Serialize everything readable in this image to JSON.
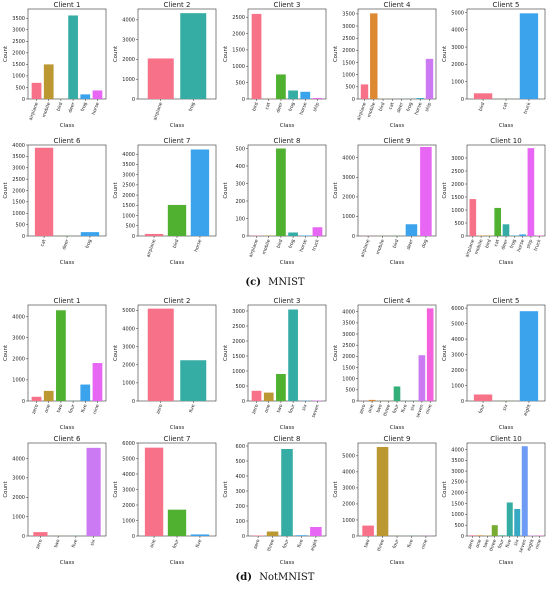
{
  "figure": {
    "caption_mnist": {
      "label": "(c)",
      "text": "MNIST"
    },
    "caption_notmnist": {
      "label": "(d)",
      "text": "NotMNIST"
    },
    "panel_xlabel": "Class",
    "panel_ylabel": "Count"
  },
  "chart_data": [
    {
      "type": "bar",
      "title": "Client 1",
      "xlabel": "Class",
      "ylabel": "Count",
      "ylim": [
        0,
        3900
      ],
      "yticks": [
        0,
        500,
        1000,
        1500,
        2000,
        2500,
        3000,
        3500
      ],
      "categories": [
        "airplane",
        "mobile",
        "bird",
        "deer",
        "frog",
        "horse"
      ],
      "values": [
        700,
        1500,
        5,
        3620,
        200,
        370
      ],
      "colors": [
        "#f77189",
        "#bb9832",
        "#50b131",
        "#36ada4",
        "#3ba3ec",
        "#e866f4"
      ]
    },
    {
      "type": "bar",
      "title": "Client 2",
      "xlabel": "Class",
      "ylabel": "Count",
      "ylim": [
        0,
        4550
      ],
      "yticks": [
        0,
        1000,
        2000,
        3000,
        4000
      ],
      "categories": [
        "airplane",
        "frog"
      ],
      "values": [
        2050,
        4340
      ],
      "colors": [
        "#f77189",
        "#36ada4"
      ]
    },
    {
      "type": "bar",
      "title": "Client 3",
      "xlabel": "Class",
      "ylabel": "Count",
      "ylim": [
        0,
        2750
      ],
      "yticks": [
        0,
        500,
        1000,
        1500,
        2000,
        2500
      ],
      "categories": [
        "bird",
        "cat",
        "deer",
        "frog",
        "horse",
        "ship"
      ],
      "values": [
        2600,
        5,
        750,
        260,
        220,
        30
      ],
      "colors": [
        "#f77189",
        "#bb9832",
        "#50b131",
        "#36ada4",
        "#3ba3ec",
        "#e866f4"
      ]
    },
    {
      "type": "bar",
      "title": "Client 4",
      "xlabel": "Class",
      "ylabel": "Count",
      "ylim": [
        0,
        3700
      ],
      "yticks": [
        0,
        500,
        1000,
        1500,
        2000,
        2500,
        3000,
        3500
      ],
      "categories": [
        "airplane",
        "mobile",
        "bird",
        "cat",
        "deer",
        "frog",
        "horse",
        "ship"
      ],
      "values": [
        600,
        3520,
        5,
        5,
        5,
        5,
        40,
        1650
      ],
      "colors": [
        "#f77189",
        "#dc8932",
        "#ae9d31",
        "#77ab31",
        "#33b07a",
        "#36ada4",
        "#38a9c5",
        "#cc7af4"
      ]
    },
    {
      "type": "bar",
      "title": "Client 5",
      "xlabel": "Class",
      "ylabel": "Count",
      "ylim": [
        0,
        5200
      ],
      "yticks": [
        0,
        1000,
        2000,
        3000,
        4000,
        5000
      ],
      "categories": [
        "bird",
        "cat",
        "truck"
      ],
      "values": [
        330,
        5,
        4950
      ],
      "colors": [
        "#f77189",
        "#50b131",
        "#3ba3ec"
      ]
    },
    {
      "type": "bar",
      "title": "Client 6",
      "xlabel": "Class",
      "ylabel": "Count",
      "ylim": [
        0,
        4000
      ],
      "yticks": [
        0,
        500,
        1000,
        1500,
        2000,
        2500,
        3000,
        3500,
        4000
      ],
      "categories": [
        "cat",
        "deer",
        "frog"
      ],
      "values": [
        3880,
        5,
        170
      ],
      "colors": [
        "#f77189",
        "#50b131",
        "#3ba3ec"
      ]
    },
    {
      "type": "bar",
      "title": "Client 7",
      "xlabel": "Class",
      "ylabel": "Count",
      "ylim": [
        0,
        4450
      ],
      "yticks": [
        0,
        500,
        1000,
        1500,
        2000,
        2500,
        3000,
        3500,
        4000
      ],
      "categories": [
        "airplane",
        "bird",
        "horse"
      ],
      "values": [
        100,
        1520,
        4230
      ],
      "colors": [
        "#f77189",
        "#50b131",
        "#3ba3ec"
      ]
    },
    {
      "type": "bar",
      "title": "Client 8",
      "xlabel": "Class",
      "ylabel": "Count",
      "ylim": [
        0,
        520
      ],
      "yticks": [
        0,
        100,
        200,
        300,
        400,
        500
      ],
      "categories": [
        "airplane",
        "mobile",
        "bird",
        "frog",
        "horse",
        "truck"
      ],
      "values": [
        2,
        2,
        500,
        20,
        3,
        50
      ],
      "colors": [
        "#f77189",
        "#bb9832",
        "#50b131",
        "#36ada4",
        "#3ba3ec",
        "#e866f4"
      ]
    },
    {
      "type": "bar",
      "title": "Client 9",
      "xlabel": "Class",
      "ylabel": "Count",
      "ylim": [
        0,
        4650
      ],
      "yticks": [
        0,
        1000,
        2000,
        3000,
        4000
      ],
      "categories": [
        "airplane",
        "mobile",
        "bird",
        "deer",
        "dog"
      ],
      "values": [
        5,
        5,
        5,
        600,
        4550
      ],
      "colors": [
        "#f77189",
        "#bb9832",
        "#50b131",
        "#3ba3ec",
        "#e866f4"
      ]
    },
    {
      "type": "bar",
      "title": "Client 10",
      "xlabel": "Class",
      "ylabel": "Count",
      "ylim": [
        0,
        3500
      ],
      "yticks": [
        0,
        500,
        1000,
        1500,
        2000,
        2500,
        3000
      ],
      "categories": [
        "airplane",
        "mobile",
        "bird",
        "cat",
        "deer",
        "frog",
        "horse",
        "ship",
        "truck"
      ],
      "values": [
        1420,
        20,
        20,
        1080,
        450,
        20,
        60,
        3380,
        20
      ],
      "colors": [
        "#f77189",
        "#dc8932",
        "#ae9d31",
        "#50b131",
        "#36ada4",
        "#38a9c5",
        "#3ba3ec",
        "#e866f4",
        "#f561dd"
      ]
    },
    {
      "type": "bar",
      "title": "Client 1",
      "xlabel": "Class",
      "ylabel": "Count",
      "ylim": [
        0,
        4550
      ],
      "yticks": [
        0,
        1000,
        2000,
        3000,
        4000
      ],
      "categories": [
        "zero",
        "one",
        "two",
        "four",
        "five",
        "nine"
      ],
      "values": [
        200,
        480,
        4300,
        5,
        780,
        1800
      ],
      "colors": [
        "#f77189",
        "#bb9832",
        "#50b131",
        "#36ada4",
        "#3ba3ec",
        "#e866f4"
      ]
    },
    {
      "type": "bar",
      "title": "Client 2",
      "xlabel": "Class",
      "ylabel": "Count",
      "ylim": [
        0,
        5300
      ],
      "yticks": [
        0,
        1000,
        2000,
        3000,
        4000,
        5000
      ],
      "categories": [
        "zero",
        "five"
      ],
      "values": [
        5100,
        2250
      ],
      "colors": [
        "#f77189",
        "#36ada4"
      ]
    },
    {
      "type": "bar",
      "title": "Client 3",
      "xlabel": "Class",
      "ylabel": "Count",
      "ylim": [
        0,
        3200
      ],
      "yticks": [
        0,
        500,
        1000,
        1500,
        2000,
        2500,
        3000
      ],
      "categories": [
        "zero",
        "one",
        "two",
        "four",
        "six",
        "seven"
      ],
      "values": [
        340,
        280,
        900,
        3050,
        10,
        15
      ],
      "colors": [
        "#f77189",
        "#bb9832",
        "#50b131",
        "#36ada4",
        "#3ba3ec",
        "#e866f4"
      ]
    },
    {
      "type": "bar",
      "title": "Client 4",
      "xlabel": "Class",
      "ylabel": "Count",
      "ylim": [
        0,
        4300
      ],
      "yticks": [
        0,
        500,
        1000,
        1500,
        2000,
        2500,
        3000,
        3500,
        4000
      ],
      "categories": [
        "zero",
        "one",
        "two",
        "three",
        "four",
        "five",
        "six",
        "seven",
        "nine"
      ],
      "values": [
        5,
        50,
        5,
        5,
        650,
        5,
        5,
        2050,
        4150
      ],
      "colors": [
        "#f77189",
        "#dc8932",
        "#ae9d31",
        "#77ab31",
        "#33b07a",
        "#36ada4",
        "#38a9c5",
        "#cc7af4",
        "#f561dd"
      ]
    },
    {
      "type": "bar",
      "title": "Client 5",
      "xlabel": "Class",
      "ylabel": "Count",
      "ylim": [
        0,
        6200
      ],
      "yticks": [
        0,
        1000,
        2000,
        3000,
        4000,
        5000,
        6000
      ],
      "categories": [
        "four",
        "six",
        "eight"
      ],
      "values": [
        420,
        5,
        5800
      ],
      "colors": [
        "#f77189",
        "#50b131",
        "#3ba3ec"
      ]
    },
    {
      "type": "bar",
      "title": "Client 6",
      "xlabel": "Class",
      "ylabel": "Count",
      "ylim": [
        0,
        4800
      ],
      "yticks": [
        0,
        1000,
        2000,
        3000,
        4000
      ],
      "categories": [
        "zero",
        "two",
        "five",
        "six"
      ],
      "values": [
        200,
        5,
        5,
        4550
      ],
      "colors": [
        "#f77189",
        "#77ab31",
        "#36ada4",
        "#cc7af4"
      ]
    },
    {
      "type": "bar",
      "title": "Client 7",
      "xlabel": "Class",
      "ylabel": "Count",
      "ylim": [
        0,
        6000
      ],
      "yticks": [
        0,
        1000,
        2000,
        3000,
        4000,
        5000,
        6000
      ],
      "categories": [
        "one",
        "four",
        "five"
      ],
      "values": [
        5700,
        1700,
        100
      ],
      "colors": [
        "#f77189",
        "#50b131",
        "#3ba3ec"
      ]
    },
    {
      "type": "bar",
      "title": "Client 8",
      "xlabel": "Class",
      "ylabel": "Count",
      "ylim": [
        0,
        620
      ],
      "yticks": [
        0,
        100,
        200,
        300,
        400,
        500,
        600
      ],
      "categories": [
        "zero",
        "three",
        "four",
        "five",
        "eight"
      ],
      "values": [
        3,
        30,
        580,
        5,
        60
      ],
      "colors": [
        "#f77189",
        "#bb9832",
        "#36ada4",
        "#3ba3ec",
        "#e866f4"
      ]
    },
    {
      "type": "bar",
      "title": "Client 9",
      "xlabel": "Class",
      "ylabel": "Count",
      "ylim": [
        0,
        5800
      ],
      "yticks": [
        0,
        1000,
        2000,
        3000,
        4000,
        5000
      ],
      "categories": [
        "two",
        "three",
        "four",
        "five",
        "nine"
      ],
      "values": [
        650,
        5550,
        5,
        5,
        5
      ],
      "colors": [
        "#f77189",
        "#bb9832",
        "#50b131",
        "#36ada4",
        "#e866f4"
      ]
    },
    {
      "type": "bar",
      "title": "Client 10",
      "xlabel": "Class",
      "ylabel": "Count",
      "ylim": [
        0,
        4300
      ],
      "yticks": [
        0,
        500,
        1000,
        1500,
        2000,
        2500,
        3000,
        3500,
        4000
      ],
      "categories": [
        "zero",
        "one",
        "two",
        "three",
        "four",
        "five",
        "six",
        "seven",
        "eight",
        "nine"
      ],
      "values": [
        30,
        30,
        20,
        500,
        30,
        1550,
        1250,
        4150,
        20,
        20
      ],
      "colors": [
        "#f77189",
        "#dc8932",
        "#ae9d31",
        "#77ab31",
        "#33b07a",
        "#36ada4",
        "#38a9c5",
        "#6e9bf4",
        "#cc7af4",
        "#f565cc"
      ]
    }
  ]
}
